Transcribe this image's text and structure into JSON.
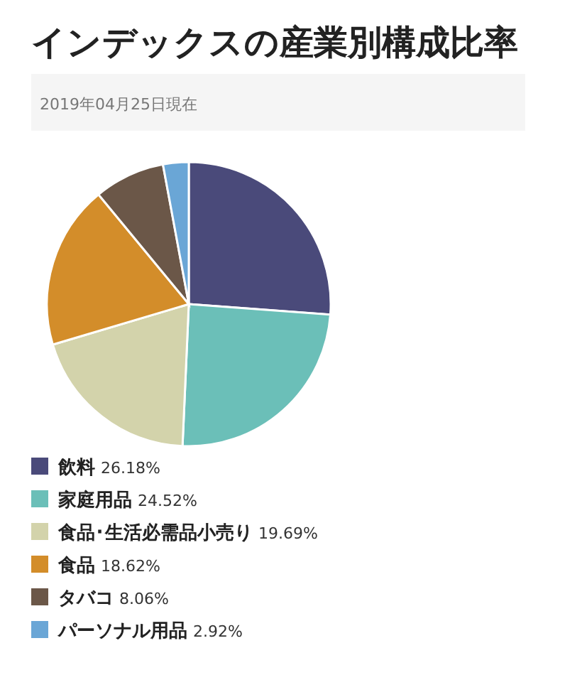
{
  "chart_data": {
    "type": "pie",
    "title": "インデックスの産業別構成比率",
    "subtitle": "2019年04月25日現在",
    "categories": [
      "飲料",
      "家庭用品",
      "食品･生活必需品小売り",
      "食品",
      "タバコ",
      "パーソナル用品"
    ],
    "values": [
      26.18,
      24.52,
      19.69,
      18.62,
      8.06,
      2.92
    ],
    "value_labels": [
      "26.18%",
      "24.52%",
      "19.69%",
      "18.62%",
      "8.06%",
      "2.92%"
    ],
    "colors": [
      "#4a4a7a",
      "#6bbfb8",
      "#d3d3ab",
      "#d38d2a",
      "#6b5748",
      "#6aa6d6"
    ],
    "legend": "bottom"
  }
}
